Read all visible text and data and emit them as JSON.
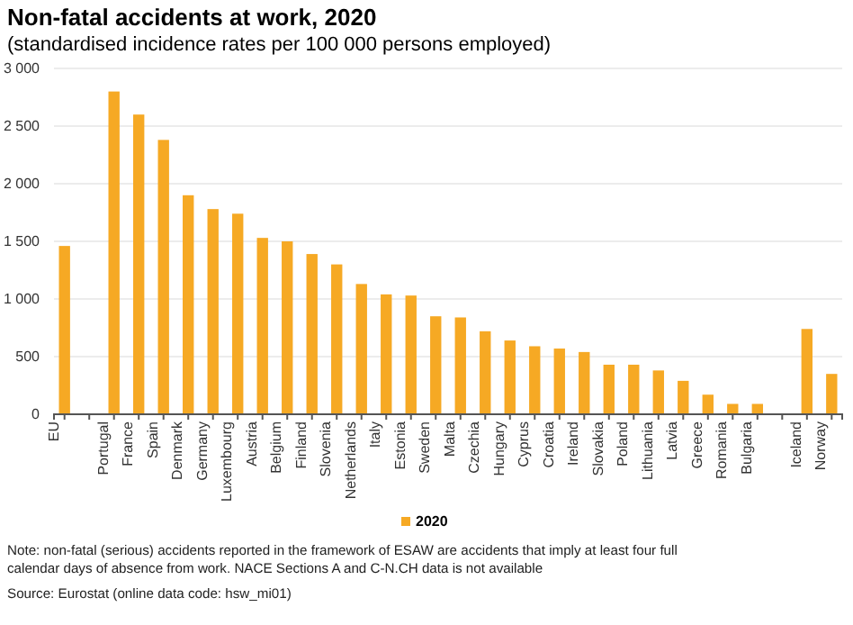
{
  "chart_data": {
    "type": "bar",
    "title": "Non-fatal accidents at work, 2020",
    "subtitle": "(standardised incidence rates per 100 000 persons employed)",
    "categories": [
      "EU",
      null,
      "Portugal",
      "France",
      "Spain",
      "Denmark",
      "Germany",
      "Luxembourg",
      "Austria",
      "Belgium",
      "Finland",
      "Slovenia",
      "Netherlands",
      "Italy",
      "Estonia",
      "Sweden",
      "Malta",
      "Czechia",
      "Hungary",
      "Cyprus",
      "Croatia",
      "Ireland",
      "Slovakia",
      "Poland",
      "Lithuania",
      "Latvia",
      "Greece",
      "Romania",
      "Bulgaria",
      null,
      "Iceland",
      "Norway"
    ],
    "series": [
      {
        "name": "2020",
        "color": "#f6a924",
        "values": [
          1460,
          null,
          2800,
          2600,
          2380,
          1900,
          1780,
          1740,
          1530,
          1500,
          1390,
          1300,
          1130,
          1040,
          1030,
          850,
          840,
          720,
          640,
          590,
          570,
          540,
          430,
          430,
          380,
          290,
          170,
          90,
          90,
          null,
          740,
          350
        ]
      }
    ],
    "ylim": [
      0,
      3000
    ],
    "yticks": [
      0,
      {
        "value": 500,
        "label": "500"
      },
      {
        "value": 1000,
        "label": "1 000"
      },
      {
        "value": 1500,
        "label": "1 500"
      },
      {
        "value": 2000,
        "label": "2 000"
      },
      {
        "value": 2500,
        "label": "2 500"
      },
      {
        "value": 3000,
        "label": "3 000"
      }
    ],
    "grid": "y",
    "legend": "bottom",
    "annotations": [
      "Note: non-fatal (serious) accidents reported in the framework of ESAW are accidents that imply at least four full calendar days of absence from work. NACE Sections A and C-N.CH data is not available",
      "Source: Eurostat (online data code: hsw_mi01)"
    ]
  }
}
